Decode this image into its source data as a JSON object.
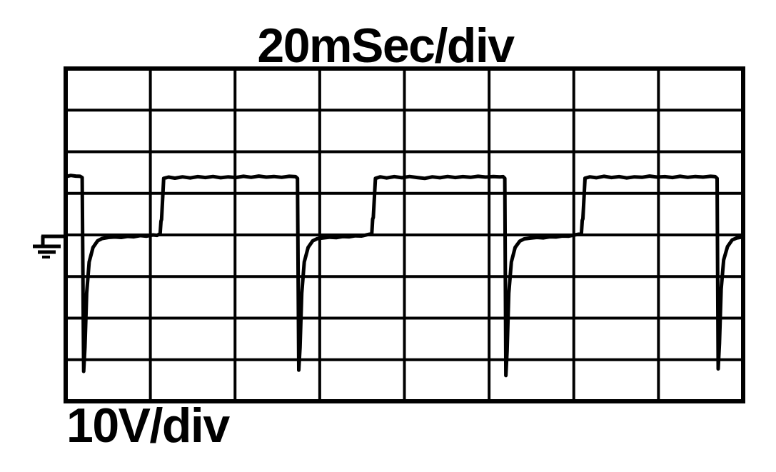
{
  "page": {
    "background": "#ffffff",
    "ink": "#000000"
  },
  "labels": {
    "timebase": "20mSec/div",
    "volts_per_div": "10V/div"
  },
  "icons": {
    "ground_marker": "earth-ground-symbol"
  },
  "chart_data": {
    "type": "line",
    "title": "20mSec/div",
    "xlabel": "20mSec/div",
    "ylabel": "10V/div",
    "x_units": "ms",
    "y_units": "V",
    "x_per_div": 20,
    "y_per_div": 10,
    "x_divisions": 8,
    "y_divisions": 8,
    "x_range": [
      0,
      160
    ],
    "y_range": [
      -40,
      40
    ],
    "zero_reference_div_from_top": 4,
    "grid": "on",
    "legend": "none",
    "waveform_summary": {
      "shape": "square wave with negative flyback spike on each falling edge",
      "high_level_V": 14,
      "baseline_level_V": 0,
      "spike_min_V": -33.8,
      "period_ms": 49.9,
      "high_time_ms": 31.5,
      "low_time_ms": 18.4
    },
    "series": [
      {
        "name": "channel-1-trace",
        "color": "#000000",
        "points": [
          [
            0,
            14.0
          ],
          [
            1.2,
            14.3
          ],
          [
            2.4,
            14.15
          ],
          [
            3.4,
            14.1
          ],
          [
            3.9,
            13.8
          ],
          [
            4.25,
            -32.8
          ],
          [
            4.55,
            -27
          ],
          [
            4.95,
            -14
          ],
          [
            5.55,
            -6.5
          ],
          [
            6.45,
            -3.0
          ],
          [
            7.55,
            -1.4
          ],
          [
            8.6,
            -0.85
          ],
          [
            10.1,
            -0.6
          ],
          [
            11.6,
            -0.5
          ],
          [
            13.1,
            -0.6
          ],
          [
            14.6,
            -0.35
          ],
          [
            16.1,
            -0.45
          ],
          [
            17.6,
            -0.15
          ],
          [
            19.1,
            -0.3
          ],
          [
            20.6,
            0.0
          ],
          [
            21.6,
            -0.1
          ],
          [
            22.3,
            0.3
          ],
          [
            22.5,
            3.3
          ],
          [
            22.65,
            3.7
          ],
          [
            23.15,
            13.6
          ],
          [
            24.3,
            13.9
          ],
          [
            25.8,
            13.65
          ],
          [
            27.6,
            13.95
          ],
          [
            29.4,
            13.7
          ],
          [
            31.2,
            14.0
          ],
          [
            33.0,
            13.8
          ],
          [
            34.8,
            14.05
          ],
          [
            36.6,
            13.75
          ],
          [
            38.4,
            13.95
          ],
          [
            40.2,
            13.8
          ],
          [
            42.0,
            14.1
          ],
          [
            43.8,
            13.85
          ],
          [
            45.6,
            14.15
          ],
          [
            47.4,
            13.9
          ],
          [
            49.2,
            14.05
          ],
          [
            51.0,
            13.85
          ],
          [
            52.8,
            14.1
          ],
          [
            54.3,
            14.0
          ],
          [
            54.75,
            13.6
          ],
          [
            55.05,
            -32.5
          ],
          [
            55.35,
            -27
          ],
          [
            55.75,
            -14
          ],
          [
            56.35,
            -6.5
          ],
          [
            57.25,
            -3.0
          ],
          [
            58.35,
            -1.4
          ],
          [
            59.4,
            -0.9
          ],
          [
            60.9,
            -0.7
          ],
          [
            62.4,
            -0.55
          ],
          [
            63.9,
            -0.65
          ],
          [
            65.4,
            -0.4
          ],
          [
            66.9,
            -0.45
          ],
          [
            68.4,
            -0.2
          ],
          [
            69.9,
            -0.25
          ],
          [
            71.2,
            0.05
          ],
          [
            72.3,
            0.3
          ],
          [
            72.5,
            3.8
          ],
          [
            72.65,
            4.2
          ],
          [
            73.15,
            13.6
          ],
          [
            74.3,
            13.95
          ],
          [
            75.8,
            13.7
          ],
          [
            77.6,
            14.0
          ],
          [
            79.4,
            13.75
          ],
          [
            81.2,
            14.05
          ],
          [
            83.0,
            13.8
          ],
          [
            84.8,
            13.6
          ],
          [
            86.6,
            13.95
          ],
          [
            88.4,
            13.75
          ],
          [
            90.2,
            14.05
          ],
          [
            92.0,
            13.8
          ],
          [
            93.8,
            14.0
          ],
          [
            95.6,
            13.85
          ],
          [
            97.4,
            14.1
          ],
          [
            99.2,
            13.9
          ],
          [
            101.0,
            14.05
          ],
          [
            102.6,
            13.95
          ],
          [
            103.3,
            14.0
          ],
          [
            103.7,
            13.6
          ],
          [
            103.95,
            -33.8
          ],
          [
            104.25,
            -28
          ],
          [
            104.65,
            -14
          ],
          [
            105.25,
            -6.5
          ],
          [
            106.15,
            -3.0
          ],
          [
            107.25,
            -1.5
          ],
          [
            108.3,
            -0.95
          ],
          [
            109.8,
            -0.75
          ],
          [
            111.3,
            -0.6
          ],
          [
            112.8,
            -0.7
          ],
          [
            114.3,
            -0.45
          ],
          [
            115.8,
            -0.5
          ],
          [
            117.3,
            -0.25
          ],
          [
            118.8,
            -0.3
          ],
          [
            120.2,
            0.0
          ],
          [
            121.8,
            0.3
          ],
          [
            122.0,
            3.5
          ],
          [
            122.15,
            3.9
          ],
          [
            122.65,
            13.65
          ],
          [
            123.8,
            13.95
          ],
          [
            125.3,
            13.75
          ],
          [
            127.1,
            14.1
          ],
          [
            128.9,
            13.8
          ],
          [
            130.7,
            14.0
          ],
          [
            132.5,
            13.7
          ],
          [
            134.3,
            13.95
          ],
          [
            136.1,
            13.85
          ],
          [
            137.9,
            14.15
          ],
          [
            139.7,
            13.9
          ],
          [
            141.5,
            14.0
          ],
          [
            143.3,
            13.8
          ],
          [
            145.1,
            14.1
          ],
          [
            146.9,
            13.85
          ],
          [
            148.7,
            14.05
          ],
          [
            150.5,
            13.9
          ],
          [
            152.3,
            14.1
          ],
          [
            153.4,
            14.0
          ],
          [
            153.85,
            13.6
          ],
          [
            154.1,
            -32.2
          ],
          [
            154.4,
            -26
          ],
          [
            154.8,
            -13
          ],
          [
            155.4,
            -6.0
          ],
          [
            156.3,
            -2.8
          ],
          [
            157.4,
            -1.2
          ],
          [
            158.4,
            -0.75
          ],
          [
            159.2,
            -0.6
          ],
          [
            160,
            -0.5
          ]
        ]
      }
    ],
    "annotations": [
      {
        "type": "ground-reference",
        "at_V": 0,
        "position": "left-of-graticule"
      }
    ]
  }
}
